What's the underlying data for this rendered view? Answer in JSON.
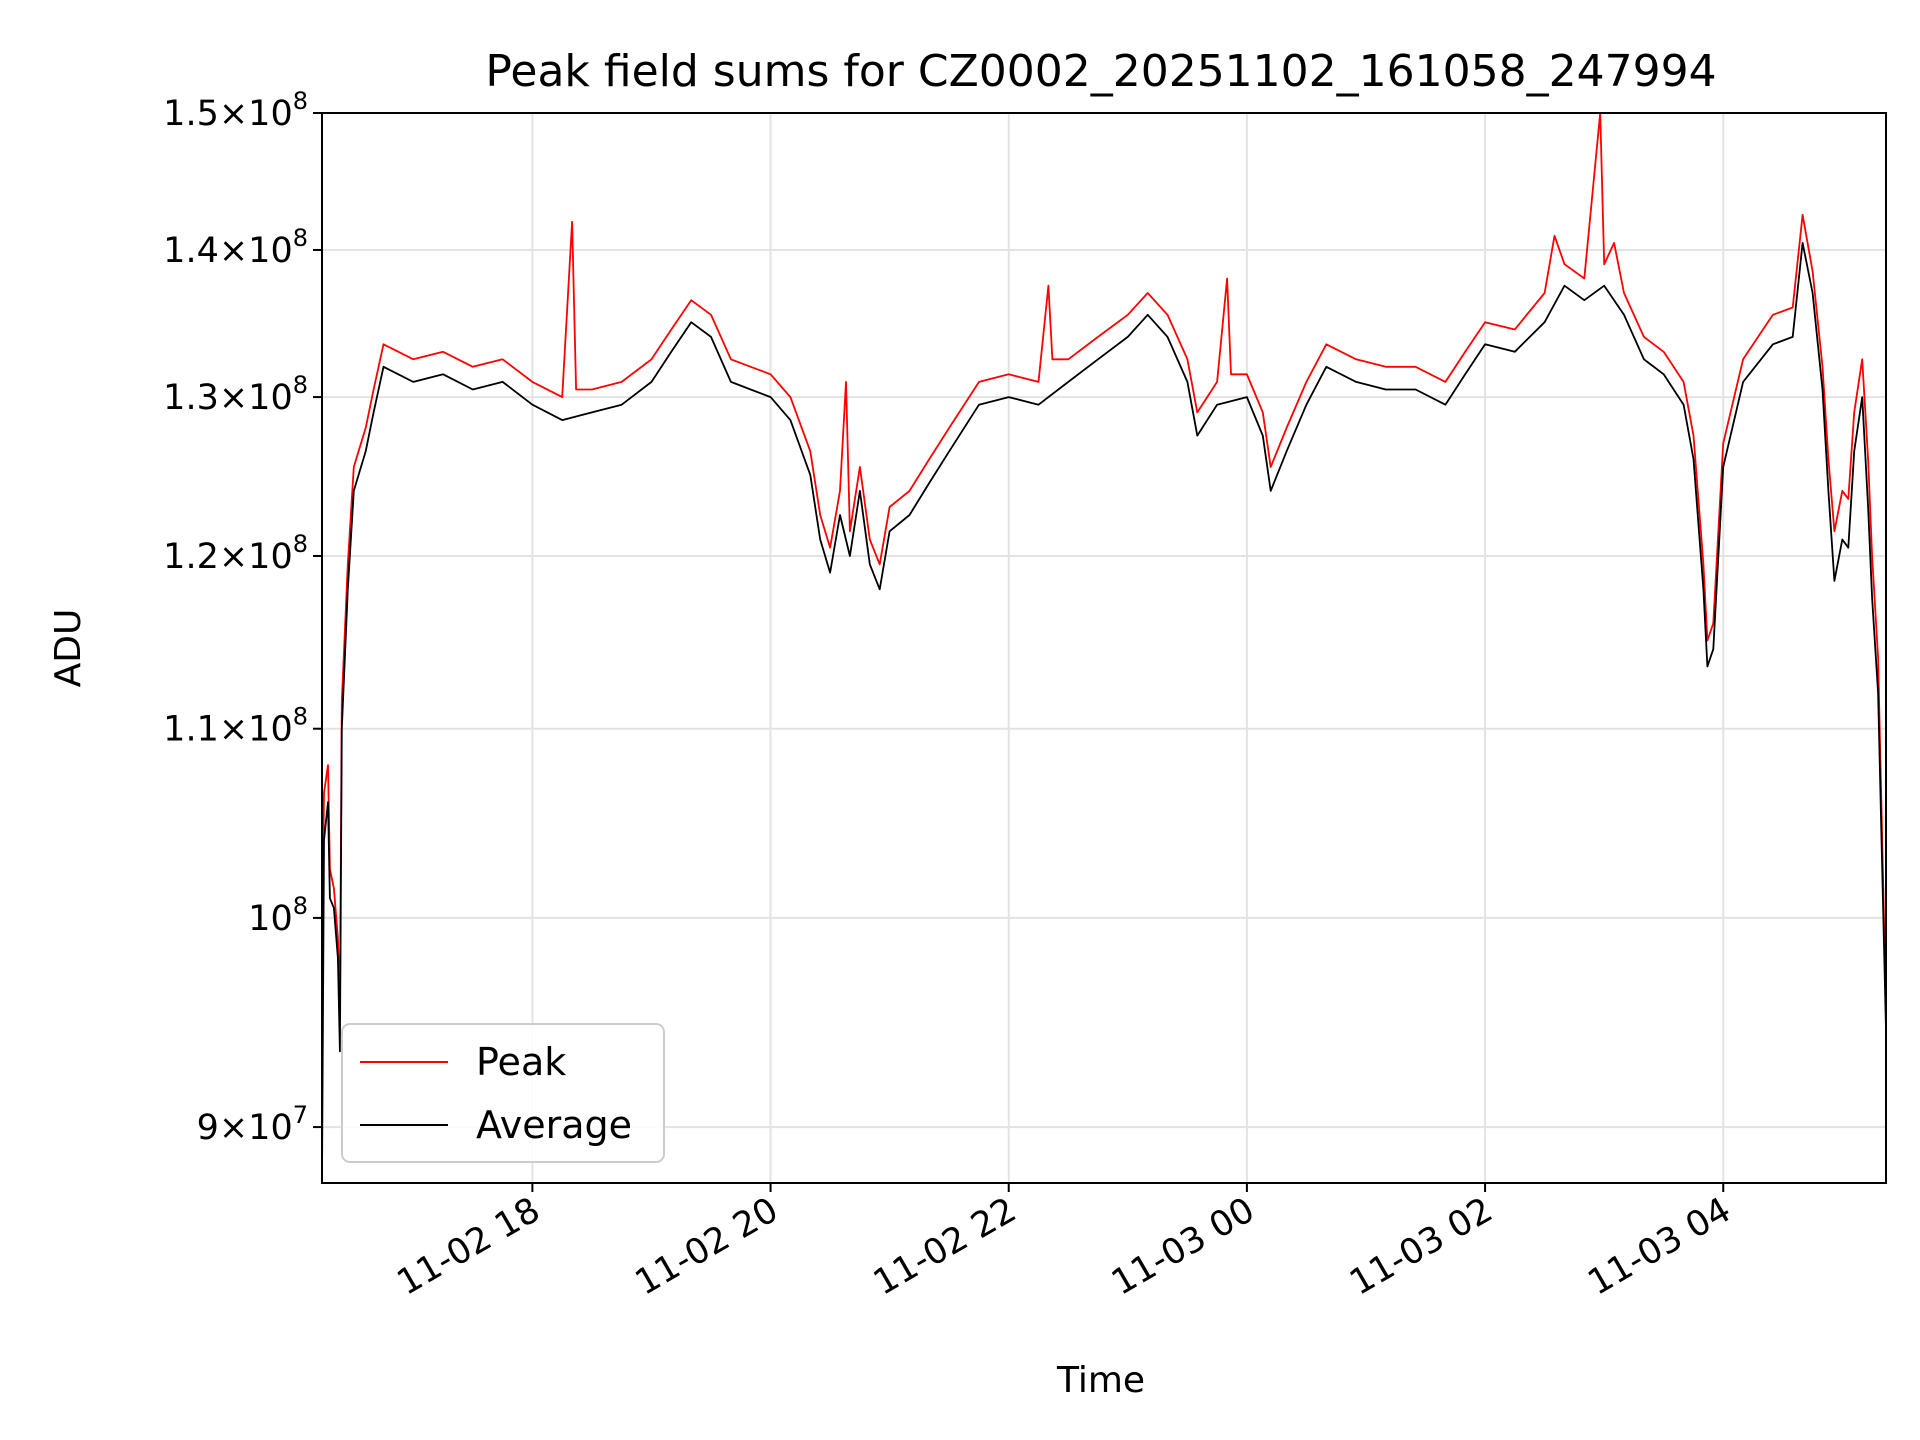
{
  "chart_data": {
    "type": "line",
    "title": "Peak field sums for CZ0002_20251102_161058_247994",
    "xlabel": "Time",
    "ylabel": "ADU",
    "y_scale": "log",
    "ylim": [
      87500000,
      150000000
    ],
    "xlim": [
      "2025-11-02 16:14",
      "2025-11-03 05:22"
    ],
    "grid": true,
    "legend_position": "lower-left",
    "x_ticks": [
      {
        "t": "2025-11-02 18:00",
        "label": "11-02 18"
      },
      {
        "t": "2025-11-02 20:00",
        "label": "11-02 20"
      },
      {
        "t": "2025-11-02 22:00",
        "label": "11-02 22"
      },
      {
        "t": "2025-11-03 00:00",
        "label": "11-03 00"
      },
      {
        "t": "2025-11-03 02:00",
        "label": "11-03 02"
      },
      {
        "t": "2025-11-03 04:00",
        "label": "11-03 04"
      }
    ],
    "y_ticks": [
      {
        "value": 90000000,
        "coef": "9",
        "exp": "7"
      },
      {
        "value": 100000000,
        "coef": "",
        "exp": "8"
      },
      {
        "value": 110000000,
        "coef": "1.1",
        "exp": "8"
      },
      {
        "value": 120000000,
        "coef": "1.2",
        "exp": "8"
      },
      {
        "value": 130000000,
        "coef": "1.3",
        "exp": "8"
      },
      {
        "value": 140000000,
        "coef": "1.4",
        "exp": "8"
      },
      {
        "value": 150000000,
        "coef": "1.5",
        "exp": "8"
      }
    ],
    "series": [
      {
        "name": "Average",
        "color": "#000000",
        "points": [
          [
            "2025-11-02 16:14",
            87800000
          ],
          [
            "2025-11-02 16:15",
            104000000
          ],
          [
            "2025-11-02 16:17",
            106000000
          ],
          [
            "2025-11-02 16:18",
            101000000
          ],
          [
            "2025-11-02 16:20",
            100500000
          ],
          [
            "2025-11-02 16:22",
            98000000
          ],
          [
            "2025-11-02 16:23",
            93500000
          ],
          [
            "2025-11-02 16:24",
            110000000
          ],
          [
            "2025-11-02 16:27",
            118000000
          ],
          [
            "2025-11-02 16:30",
            124000000
          ],
          [
            "2025-11-02 16:36",
            126500000
          ],
          [
            "2025-11-02 16:40",
            129000000
          ],
          [
            "2025-11-02 16:45",
            132000000
          ],
          [
            "2025-11-02 17:00",
            131000000
          ],
          [
            "2025-11-02 17:15",
            131500000
          ],
          [
            "2025-11-02 17:30",
            130500000
          ],
          [
            "2025-11-02 17:45",
            131000000
          ],
          [
            "2025-11-02 18:00",
            129500000
          ],
          [
            "2025-11-02 18:15",
            128500000
          ],
          [
            "2025-11-02 18:30",
            129000000
          ],
          [
            "2025-11-02 18:45",
            129500000
          ],
          [
            "2025-11-02 19:00",
            131000000
          ],
          [
            "2025-11-02 19:10",
            133000000
          ],
          [
            "2025-11-02 19:20",
            135000000
          ],
          [
            "2025-11-02 19:30",
            134000000
          ],
          [
            "2025-11-02 19:40",
            131000000
          ],
          [
            "2025-11-02 19:50",
            130500000
          ],
          [
            "2025-11-02 20:00",
            130000000
          ],
          [
            "2025-11-02 20:10",
            128500000
          ],
          [
            "2025-11-02 20:20",
            125000000
          ],
          [
            "2025-11-02 20:25",
            121000000
          ],
          [
            "2025-11-02 20:30",
            119000000
          ],
          [
            "2025-11-02 20:35",
            122500000
          ],
          [
            "2025-11-02 20:40",
            120000000
          ],
          [
            "2025-11-02 20:45",
            124000000
          ],
          [
            "2025-11-02 20:50",
            119500000
          ],
          [
            "2025-11-02 20:55",
            118000000
          ],
          [
            "2025-11-02 21:00",
            121500000
          ],
          [
            "2025-11-02 21:10",
            122500000
          ],
          [
            "2025-11-02 21:20",
            124500000
          ],
          [
            "2025-11-02 21:30",
            126500000
          ],
          [
            "2025-11-02 21:45",
            129500000
          ],
          [
            "2025-11-02 22:00",
            130000000
          ],
          [
            "2025-11-02 22:15",
            129500000
          ],
          [
            "2025-11-02 22:30",
            131000000
          ],
          [
            "2025-11-02 22:45",
            132500000
          ],
          [
            "2025-11-02 23:00",
            134000000
          ],
          [
            "2025-11-02 23:10",
            135500000
          ],
          [
            "2025-11-02 23:20",
            134000000
          ],
          [
            "2025-11-02 23:30",
            131000000
          ],
          [
            "2025-11-02 23:35",
            127500000
          ],
          [
            "2025-11-02 23:45",
            129500000
          ],
          [
            "2025-11-03 00:00",
            130000000
          ],
          [
            "2025-11-03 00:08",
            127500000
          ],
          [
            "2025-11-03 00:12",
            124000000
          ],
          [
            "2025-11-03 00:20",
            126500000
          ],
          [
            "2025-11-03 00:30",
            129500000
          ],
          [
            "2025-11-03 00:40",
            132000000
          ],
          [
            "2025-11-03 00:55",
            131000000
          ],
          [
            "2025-11-03 01:10",
            130500000
          ],
          [
            "2025-11-03 01:25",
            130500000
          ],
          [
            "2025-11-03 01:40",
            129500000
          ],
          [
            "2025-11-03 01:50",
            131500000
          ],
          [
            "2025-11-03 02:00",
            133500000
          ],
          [
            "2025-11-03 02:15",
            133000000
          ],
          [
            "2025-11-03 02:30",
            135000000
          ],
          [
            "2025-11-03 02:40",
            137500000
          ],
          [
            "2025-11-03 02:50",
            136500000
          ],
          [
            "2025-11-03 03:00",
            137500000
          ],
          [
            "2025-11-03 03:10",
            135500000
          ],
          [
            "2025-11-03 03:20",
            132500000
          ],
          [
            "2025-11-03 03:30",
            131500000
          ],
          [
            "2025-11-03 03:40",
            129500000
          ],
          [
            "2025-11-03 03:45",
            126000000
          ],
          [
            "2025-11-03 03:50",
            118000000
          ],
          [
            "2025-11-03 03:52",
            113500000
          ],
          [
            "2025-11-03 03:55",
            114500000
          ],
          [
            "2025-11-03 04:00",
            125500000
          ],
          [
            "2025-11-03 04:10",
            131000000
          ],
          [
            "2025-11-03 04:25",
            133500000
          ],
          [
            "2025-11-03 04:35",
            134000000
          ],
          [
            "2025-11-03 04:40",
            140500000
          ],
          [
            "2025-11-03 04:45",
            137000000
          ],
          [
            "2025-11-03 04:50",
            130500000
          ],
          [
            "2025-11-03 04:53",
            124000000
          ],
          [
            "2025-11-03 04:56",
            118500000
          ],
          [
            "2025-11-03 05:00",
            121000000
          ],
          [
            "2025-11-03 05:03",
            120500000
          ],
          [
            "2025-11-03 05:06",
            126500000
          ],
          [
            "2025-11-03 05:10",
            130000000
          ],
          [
            "2025-11-03 05:13",
            123000000
          ],
          [
            "2025-11-03 05:15",
            117500000
          ],
          [
            "2025-11-03 05:18",
            112000000
          ],
          [
            "2025-11-03 05:22",
            94500000
          ]
        ]
      },
      {
        "name": "Peak",
        "color": "#ff0000",
        "points": [
          [
            "2025-11-02 16:14",
            98000000
          ],
          [
            "2025-11-02 16:15",
            106500000
          ],
          [
            "2025-11-02 16:17",
            108000000
          ],
          [
            "2025-11-02 16:18",
            102500000
          ],
          [
            "2025-11-02 16:20",
            101500000
          ],
          [
            "2025-11-02 16:22",
            99000000
          ],
          [
            "2025-11-02 16:23",
            95000000
          ],
          [
            "2025-11-02 16:24",
            111500000
          ],
          [
            "2025-11-02 16:27",
            119500000
          ],
          [
            "2025-11-02 16:30",
            125500000
          ],
          [
            "2025-11-02 16:36",
            128000000
          ],
          [
            "2025-11-02 16:40",
            130500000
          ],
          [
            "2025-11-02 16:45",
            133500000
          ],
          [
            "2025-11-02 17:00",
            132500000
          ],
          [
            "2025-11-02 17:15",
            133000000
          ],
          [
            "2025-11-02 17:30",
            132000000
          ],
          [
            "2025-11-02 17:45",
            132500000
          ],
          [
            "2025-11-02 18:00",
            131000000
          ],
          [
            "2025-11-02 18:15",
            130000000
          ],
          [
            "2025-11-02 18:20",
            142000000
          ],
          [
            "2025-11-02 18:22",
            130500000
          ],
          [
            "2025-11-02 18:30",
            130500000
          ],
          [
            "2025-11-02 18:45",
            131000000
          ],
          [
            "2025-11-02 19:00",
            132500000
          ],
          [
            "2025-11-02 19:10",
            134500000
          ],
          [
            "2025-11-02 19:20",
            136500000
          ],
          [
            "2025-11-02 19:30",
            135500000
          ],
          [
            "2025-11-02 19:40",
            132500000
          ],
          [
            "2025-11-02 19:50",
            132000000
          ],
          [
            "2025-11-02 20:00",
            131500000
          ],
          [
            "2025-11-02 20:10",
            130000000
          ],
          [
            "2025-11-02 20:20",
            126500000
          ],
          [
            "2025-11-02 20:25",
            122500000
          ],
          [
            "2025-11-02 20:30",
            120500000
          ],
          [
            "2025-11-02 20:35",
            124000000
          ],
          [
            "2025-11-02 20:38",
            131000000
          ],
          [
            "2025-11-02 20:40",
            121500000
          ],
          [
            "2025-11-02 20:45",
            125500000
          ],
          [
            "2025-11-02 20:50",
            121000000
          ],
          [
            "2025-11-02 20:55",
            119500000
          ],
          [
            "2025-11-02 21:00",
            123000000
          ],
          [
            "2025-11-02 21:10",
            124000000
          ],
          [
            "2025-11-02 21:20",
            126000000
          ],
          [
            "2025-11-02 21:30",
            128000000
          ],
          [
            "2025-11-02 21:45",
            131000000
          ],
          [
            "2025-11-02 22:00",
            131500000
          ],
          [
            "2025-11-02 22:15",
            131000000
          ],
          [
            "2025-11-02 22:20",
            137500000
          ],
          [
            "2025-11-02 22:22",
            132500000
          ],
          [
            "2025-11-02 22:30",
            132500000
          ],
          [
            "2025-11-02 22:45",
            134000000
          ],
          [
            "2025-11-02 23:00",
            135500000
          ],
          [
            "2025-11-02 23:10",
            137000000
          ],
          [
            "2025-11-02 23:20",
            135500000
          ],
          [
            "2025-11-02 23:30",
            132500000
          ],
          [
            "2025-11-02 23:35",
            129000000
          ],
          [
            "2025-11-02 23:45",
            131000000
          ],
          [
            "2025-11-02 23:50",
            138000000
          ],
          [
            "2025-11-02 23:52",
            131500000
          ],
          [
            "2025-11-03 00:00",
            131500000
          ],
          [
            "2025-11-03 00:08",
            129000000
          ],
          [
            "2025-11-03 00:12",
            125500000
          ],
          [
            "2025-11-03 00:20",
            128000000
          ],
          [
            "2025-11-03 00:30",
            131000000
          ],
          [
            "2025-11-03 00:40",
            133500000
          ],
          [
            "2025-11-03 00:55",
            132500000
          ],
          [
            "2025-11-03 01:10",
            132000000
          ],
          [
            "2025-11-03 01:25",
            132000000
          ],
          [
            "2025-11-03 01:40",
            131000000
          ],
          [
            "2025-11-03 01:50",
            133000000
          ],
          [
            "2025-11-03 02:00",
            135000000
          ],
          [
            "2025-11-03 02:15",
            134500000
          ],
          [
            "2025-11-03 02:30",
            137000000
          ],
          [
            "2025-11-03 02:35",
            141000000
          ],
          [
            "2025-11-03 02:40",
            139000000
          ],
          [
            "2025-11-03 02:50",
            138000000
          ],
          [
            "2025-11-03 02:58",
            150000000
          ],
          [
            "2025-11-03 03:00",
            139000000
          ],
          [
            "2025-11-03 03:05",
            140500000
          ],
          [
            "2025-11-03 03:10",
            137000000
          ],
          [
            "2025-11-03 03:20",
            134000000
          ],
          [
            "2025-11-03 03:30",
            133000000
          ],
          [
            "2025-11-03 03:40",
            131000000
          ],
          [
            "2025-11-03 03:45",
            127500000
          ],
          [
            "2025-11-03 03:50",
            119500000
          ],
          [
            "2025-11-03 03:52",
            115000000
          ],
          [
            "2025-11-03 03:55",
            116000000
          ],
          [
            "2025-11-03 04:00",
            127000000
          ],
          [
            "2025-11-03 04:10",
            132500000
          ],
          [
            "2025-11-03 04:25",
            135500000
          ],
          [
            "2025-11-03 04:35",
            136000000
          ],
          [
            "2025-11-03 04:40",
            142500000
          ],
          [
            "2025-11-03 04:45",
            138500000
          ],
          [
            "2025-11-03 04:50",
            132000000
          ],
          [
            "2025-11-03 04:53",
            126000000
          ],
          [
            "2025-11-03 04:56",
            121500000
          ],
          [
            "2025-11-03 05:00",
            124000000
          ],
          [
            "2025-11-03 05:03",
            123500000
          ],
          [
            "2025-11-03 05:06",
            129000000
          ],
          [
            "2025-11-03 05:10",
            132500000
          ],
          [
            "2025-11-03 05:13",
            126000000
          ],
          [
            "2025-11-03 05:15",
            120000000
          ],
          [
            "2025-11-03 05:18",
            114000000
          ],
          [
            "2025-11-03 05:22",
            95500000
          ]
        ]
      }
    ],
    "legend": [
      {
        "name": "Peak",
        "color": "#ff0000"
      },
      {
        "name": "Average",
        "color": "#000000"
      }
    ]
  }
}
